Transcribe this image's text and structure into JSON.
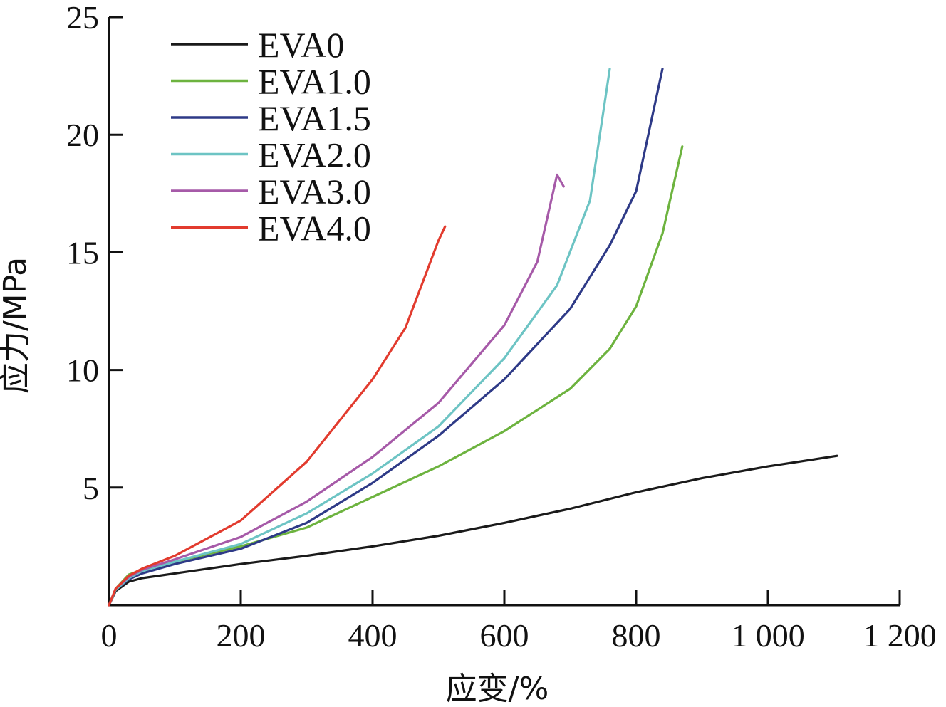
{
  "chart_data": {
    "type": "line",
    "title": "",
    "xlabel": "应变/%",
    "ylabel": "应力/MPa",
    "xlim": [
      0,
      1200
    ],
    "ylim": [
      0,
      25
    ],
    "x_ticks": [
      0,
      200,
      400,
      600,
      800,
      1000,
      1200
    ],
    "x_tick_labels": [
      "0",
      "200",
      "400",
      "600",
      "800",
      "1 000",
      "1 200"
    ],
    "y_ticks": [
      5,
      10,
      15,
      20,
      25
    ],
    "y_tick_labels": [
      "5",
      "10",
      "15",
      "20",
      "25"
    ],
    "grid": false,
    "legend_position": "top-left",
    "series": [
      {
        "name": "EVA0",
        "color": "#1a1a1a",
        "points": [
          [
            0,
            0
          ],
          [
            10,
            0.6
          ],
          [
            30,
            1.0
          ],
          [
            50,
            1.15
          ],
          [
            100,
            1.35
          ],
          [
            200,
            1.75
          ],
          [
            300,
            2.1
          ],
          [
            400,
            2.5
          ],
          [
            500,
            2.95
          ],
          [
            600,
            3.5
          ],
          [
            700,
            4.1
          ],
          [
            800,
            4.8
          ],
          [
            900,
            5.4
          ],
          [
            1000,
            5.9
          ],
          [
            1105,
            6.35
          ]
        ]
      },
      {
        "name": "EVA1.0",
        "color": "#6db33f",
        "points": [
          [
            0,
            0
          ],
          [
            10,
            0.7
          ],
          [
            30,
            1.3
          ],
          [
            50,
            1.5
          ],
          [
            100,
            1.85
          ],
          [
            200,
            2.5
          ],
          [
            300,
            3.3
          ],
          [
            400,
            4.6
          ],
          [
            500,
            5.9
          ],
          [
            600,
            7.4
          ],
          [
            700,
            9.2
          ],
          [
            760,
            10.9
          ],
          [
            800,
            12.7
          ],
          [
            840,
            15.8
          ],
          [
            870,
            19.5
          ]
        ]
      },
      {
        "name": "EVA1.5",
        "color": "#2e3a87",
        "points": [
          [
            0,
            0
          ],
          [
            10,
            0.65
          ],
          [
            30,
            1.1
          ],
          [
            50,
            1.35
          ],
          [
            100,
            1.75
          ],
          [
            200,
            2.4
          ],
          [
            300,
            3.5
          ],
          [
            400,
            5.2
          ],
          [
            500,
            7.2
          ],
          [
            600,
            9.6
          ],
          [
            700,
            12.6
          ],
          [
            760,
            15.3
          ],
          [
            800,
            17.6
          ],
          [
            840,
            22.8
          ]
        ]
      },
      {
        "name": "EVA2.0",
        "color": "#6dc4c4",
        "points": [
          [
            0,
            0
          ],
          [
            10,
            0.65
          ],
          [
            30,
            1.15
          ],
          [
            50,
            1.45
          ],
          [
            100,
            1.85
          ],
          [
            200,
            2.6
          ],
          [
            300,
            3.9
          ],
          [
            400,
            5.6
          ],
          [
            500,
            7.6
          ],
          [
            600,
            10.5
          ],
          [
            680,
            13.6
          ],
          [
            730,
            17.2
          ],
          [
            760,
            22.8
          ]
        ]
      },
      {
        "name": "EVA3.0",
        "color": "#a65aa8",
        "points": [
          [
            0,
            0
          ],
          [
            10,
            0.7
          ],
          [
            30,
            1.2
          ],
          [
            50,
            1.5
          ],
          [
            100,
            1.95
          ],
          [
            200,
            2.9
          ],
          [
            300,
            4.4
          ],
          [
            400,
            6.3
          ],
          [
            500,
            8.6
          ],
          [
            600,
            11.9
          ],
          [
            650,
            14.6
          ],
          [
            680,
            18.3
          ],
          [
            690,
            17.8
          ]
        ]
      },
      {
        "name": "EVA4.0",
        "color": "#e23b2e",
        "points": [
          [
            0,
            0
          ],
          [
            10,
            0.7
          ],
          [
            30,
            1.25
          ],
          [
            50,
            1.55
          ],
          [
            100,
            2.1
          ],
          [
            200,
            3.6
          ],
          [
            300,
            6.1
          ],
          [
            400,
            9.6
          ],
          [
            450,
            11.8
          ],
          [
            500,
            15.5
          ],
          [
            510,
            16.1
          ]
        ]
      }
    ]
  }
}
